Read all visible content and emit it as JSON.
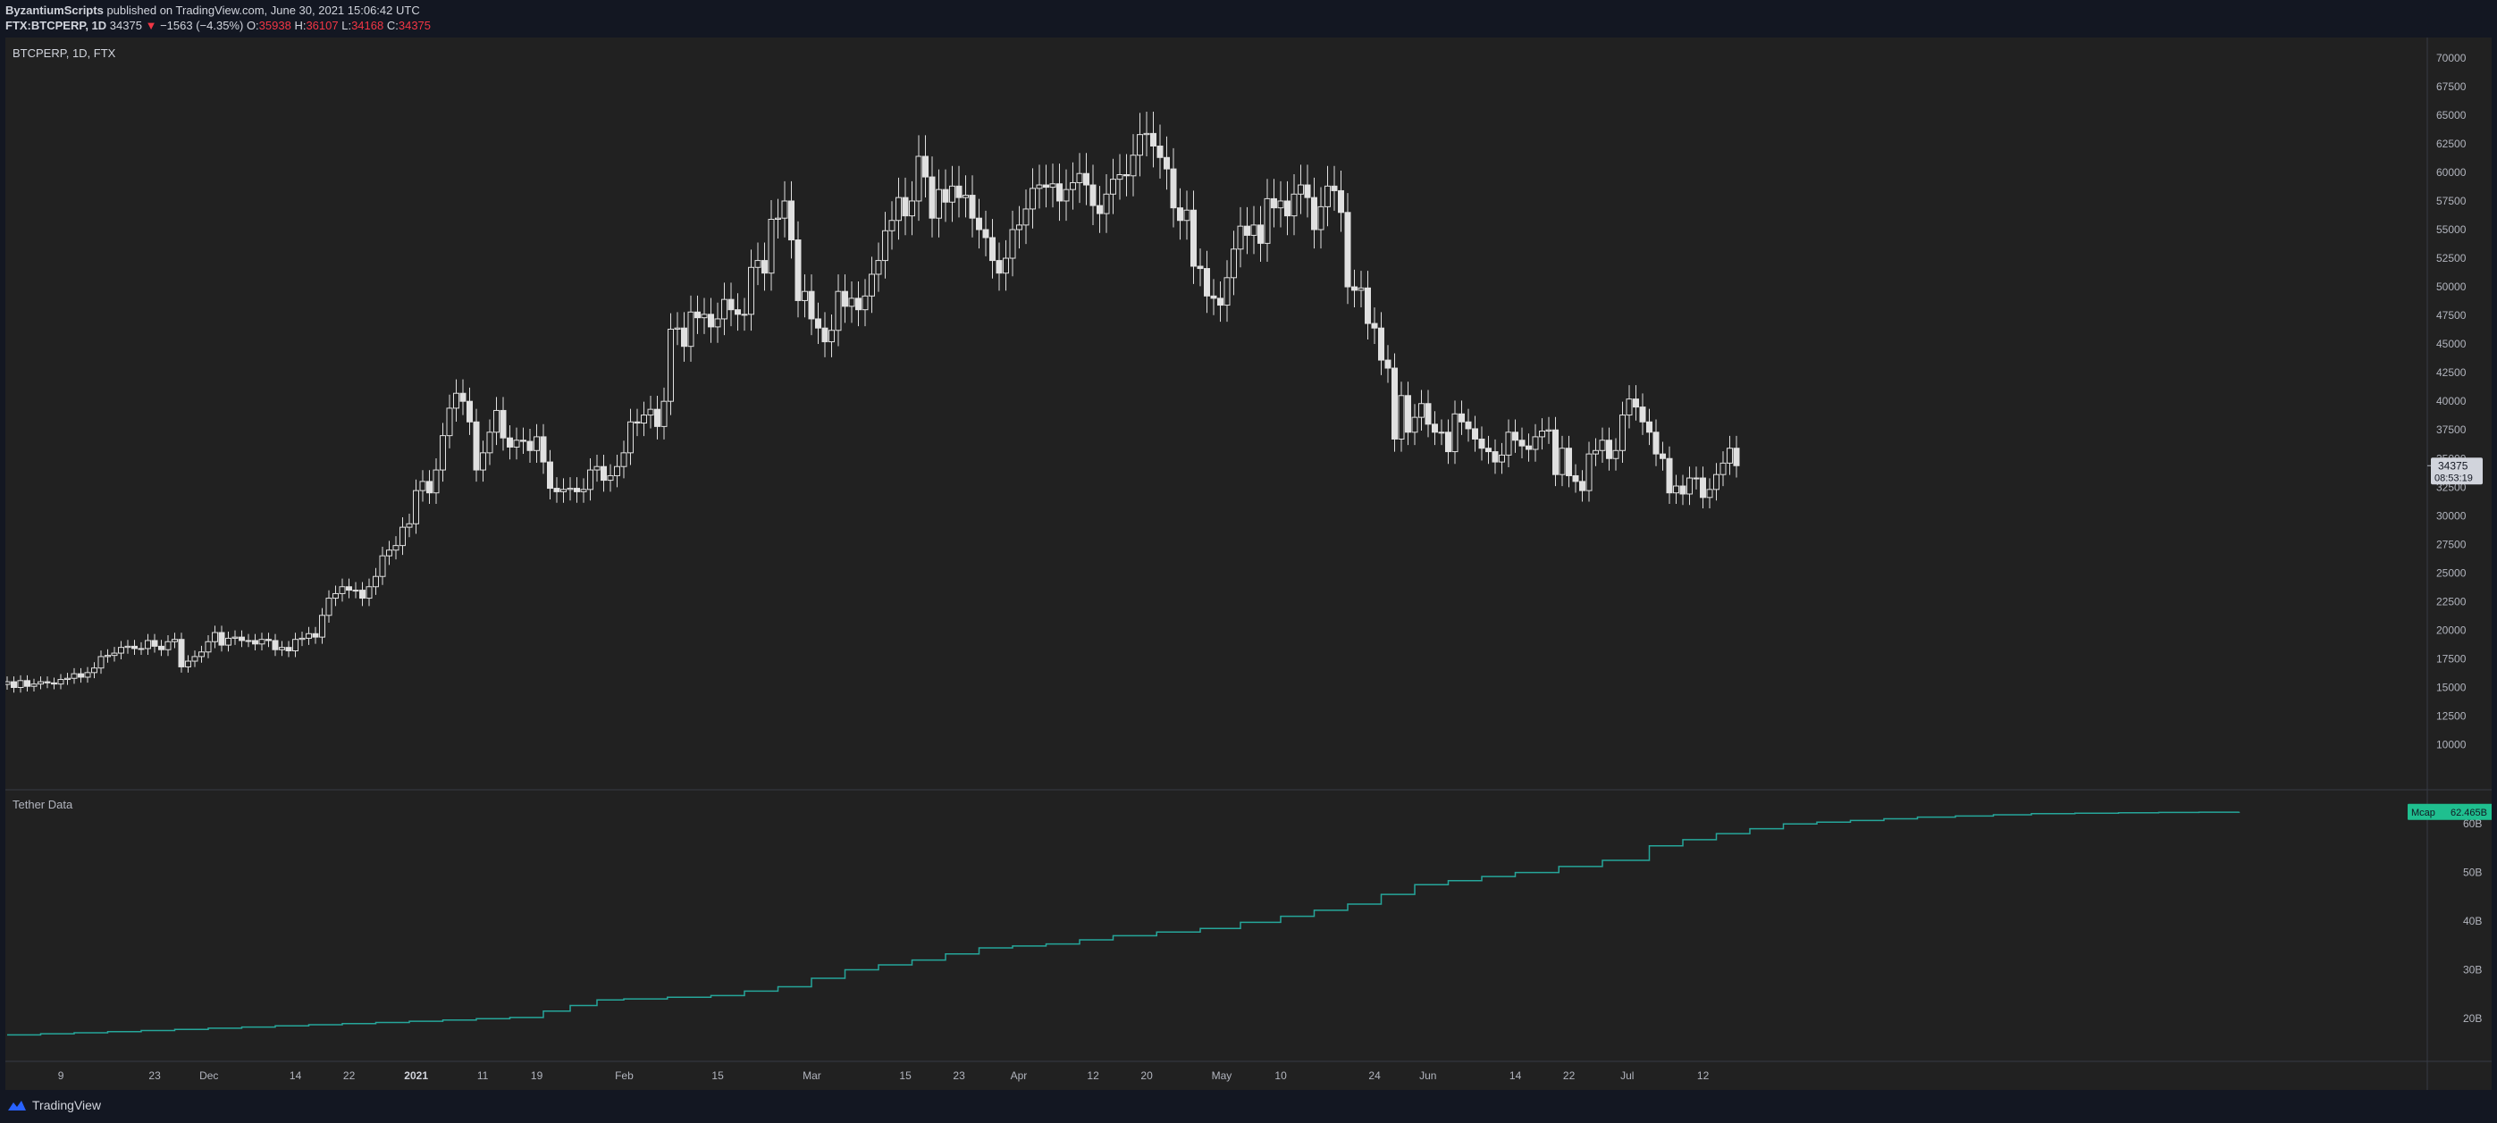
{
  "header": {
    "author": "ByzantiumScripts",
    "published": "published on TradingView.com, June 30, 2021 15:06:42 UTC",
    "symbol": "FTX:BTCPERP, 1D",
    "last": "34375",
    "change_arrow": "▼",
    "change": "−1563 (−4.35%)",
    "o_label": "O:",
    "o_value": "35938",
    "h_label": "H:",
    "h_value": "36107",
    "l_label": "L:",
    "l_value": "34168",
    "c_label": "C:",
    "c_value": "34375"
  },
  "pane_labels": {
    "main": "BTCPERP, 1D, FTX",
    "indicator": "Tether Data"
  },
  "price_tag": {
    "value": "34375",
    "countdown": "08:53:19"
  },
  "indicator_tag": {
    "label": "Mcap",
    "value": "62.465B"
  },
  "footer": {
    "brand": "TradingView",
    "icon": "tradingview-logo-icon"
  },
  "colors": {
    "background": "#212121",
    "candle": "#e0e0e0",
    "line": "#26a69a",
    "tag": "#1fbf8f",
    "down": "#f23645"
  },
  "chart_data": [
    {
      "type": "candlestick",
      "title": "BTCPERP, 1D, FTX",
      "y_ticks": [
        10000,
        12500,
        15000,
        17500,
        20000,
        22500,
        25000,
        27500,
        30000,
        32500,
        35000,
        37500,
        40000,
        42500,
        45000,
        47500,
        50000,
        52500,
        55000,
        57500,
        60000,
        62500,
        65000,
        67500,
        70000
      ],
      "ylim": [
        7000,
        71000
      ],
      "x_ticks": [
        "9",
        "23",
        "Dec",
        "14",
        "22",
        "2021",
        "11",
        "19",
        "Feb",
        "15",
        "Mar",
        "15",
        "23",
        "Apr",
        "12",
        "20",
        "May",
        "10",
        "24",
        "Jun",
        "14",
        "22",
        "Jul",
        "12"
      ],
      "x_range": [
        "2020-11-01",
        "2021-07-25"
      ],
      "start_date": "2020-11-01",
      "closes": [
        15500,
        15000,
        15600,
        15100,
        15300,
        15500,
        15400,
        15300,
        15700,
        15800,
        16200,
        15900,
        16300,
        16700,
        17700,
        17800,
        18000,
        18500,
        18600,
        18400,
        18400,
        19100,
        18600,
        18300,
        19000,
        19200,
        16800,
        17300,
        17700,
        18100,
        19000,
        19800,
        18700,
        19300,
        19400,
        19100,
        19100,
        18800,
        19200,
        19100,
        18300,
        18500,
        18200,
        19200,
        19300,
        19700,
        19400,
        21300,
        22800,
        23200,
        23800,
        23500,
        23500,
        22800,
        23800,
        24700,
        26500,
        27000,
        27400,
        29000,
        29300,
        32200,
        33000,
        32000,
        34000,
        37000,
        39400,
        40700,
        40000,
        38200,
        34000,
        35500,
        37300,
        39200,
        36800,
        36000,
        36600,
        36500,
        35700,
        36900,
        34700,
        32400,
        32100,
        32300,
        32400,
        32100,
        32300,
        34000,
        34300,
        33100,
        33500,
        34300,
        35500,
        38200,
        38100,
        38800,
        39300,
        37800,
        40000,
        46300,
        46400,
        44800,
        47800,
        47300,
        47600,
        46500,
        47200,
        48900,
        48000,
        47600,
        47600,
        51700,
        52300,
        51200,
        55900,
        56000,
        57500,
        54100,
        48800,
        49600,
        47200,
        46400,
        45200,
        46200,
        49600,
        48300,
        49000,
        48000,
        49200,
        51100,
        52300,
        54900,
        55800,
        57800,
        56200,
        57500,
        61400,
        59600,
        56000,
        58500,
        57400,
        58800,
        57800,
        58000,
        56000,
        55000,
        54300,
        52300,
        51200,
        52500,
        55000,
        55400,
        56800,
        58600,
        58900,
        58700,
        59000,
        57500,
        58500,
        59100,
        59900,
        58900,
        57100,
        56400,
        58100,
        59400,
        59800,
        59700,
        61500,
        63300,
        63400,
        62300,
        61300,
        60300,
        56900,
        55800,
        56700,
        51800,
        51600,
        49200,
        49000,
        48400,
        50800,
        53300,
        55300,
        54500,
        55400,
        53800,
        57700,
        56900,
        57500,
        56200,
        58100,
        58900,
        57800,
        55000,
        57000,
        58800,
        58400,
        56500,
        50000,
        49700,
        49900,
        46800,
        46400,
        43600,
        42900,
        36700,
        40500,
        37300,
        38600,
        39800,
        38000,
        37300,
        37300,
        35600,
        38900,
        38200,
        37600,
        36700,
        35900,
        35600,
        34700,
        35300,
        37300,
        36600,
        36100,
        35800,
        36900,
        37400,
        37500,
        33600,
        35900,
        33500,
        33000,
        32200,
        35400,
        35700,
        36600,
        35000,
        35700,
        38800,
        40200,
        39500,
        38200,
        37300,
        35400,
        35000,
        32000,
        32600,
        31900,
        33300,
        33300,
        31600,
        32300,
        33600,
        34600,
        35900,
        34375
      ]
    },
    {
      "type": "line",
      "title": "Tether Data",
      "series": [
        {
          "name": "Mcap"
        }
      ],
      "y_ticks": [
        "20B",
        "30B",
        "40B",
        "50B",
        "60B"
      ],
      "y_tick_values": [
        20,
        30,
        40,
        50,
        60
      ],
      "ylim": [
        13,
        65
      ],
      "x_range": [
        "2020-11-01",
        "2021-07-25"
      ],
      "points": [
        [
          0,
          16.6
        ],
        [
          20,
          17.5
        ],
        [
          45,
          18.7
        ],
        [
          60,
          19.4
        ],
        [
          75,
          20.2
        ],
        [
          80,
          21.5
        ],
        [
          88,
          23.8
        ],
        [
          92,
          24.0
        ],
        [
          105,
          24.7
        ],
        [
          115,
          26.5
        ],
        [
          125,
          30
        ],
        [
          135,
          32
        ],
        [
          145,
          34.5
        ],
        [
          155,
          35.3
        ],
        [
          165,
          37
        ],
        [
          178,
          38.5
        ],
        [
          190,
          41
        ],
        [
          200,
          43.5
        ],
        [
          210,
          47.5
        ],
        [
          225,
          50
        ],
        [
          238,
          52.5
        ],
        [
          245,
          55.5
        ],
        [
          255,
          58
        ],
        [
          265,
          60
        ],
        [
          285,
          61.4
        ],
        [
          302,
          62.1
        ],
        [
          315,
          62.3
        ],
        [
          333,
          62.465
        ]
      ]
    }
  ]
}
